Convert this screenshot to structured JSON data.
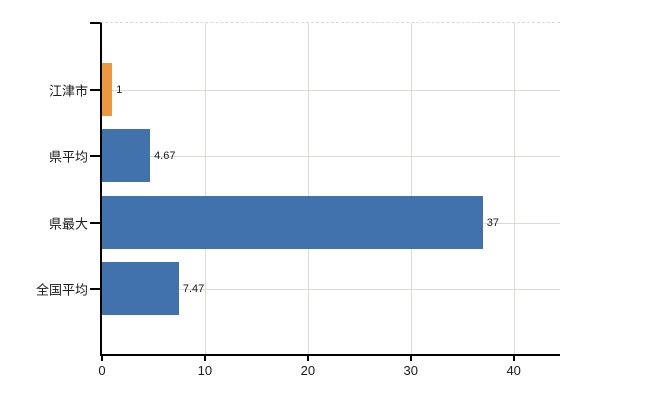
{
  "chart_data": {
    "type": "bar",
    "orientation": "horizontal",
    "title": "",
    "xlabel": "",
    "ylabel": "",
    "categories": [
      "江津市",
      "県平均",
      "県最大",
      "全国平均"
    ],
    "values": [
      1,
      4.67,
      37,
      7.47
    ],
    "value_labels": [
      "1",
      "4.67",
      "37",
      "7.47"
    ],
    "series_colors": [
      "#EC9840",
      "#4272AC",
      "#4272AC",
      "#4272AC"
    ],
    "xticks": [
      0,
      10,
      20,
      30,
      40
    ],
    "xtick_labels": [
      "0",
      "10",
      "20",
      "30",
      "40"
    ],
    "xlim": [
      0,
      44.5
    ],
    "grid": true,
    "legend": false
  },
  "colors": {
    "bar_orange": "#EC9840",
    "bar_blue": "#4272AC",
    "gridline": "#d8ddd4",
    "axis": "#000000",
    "background": "#ffffff",
    "text": "#1a1a1a"
  }
}
